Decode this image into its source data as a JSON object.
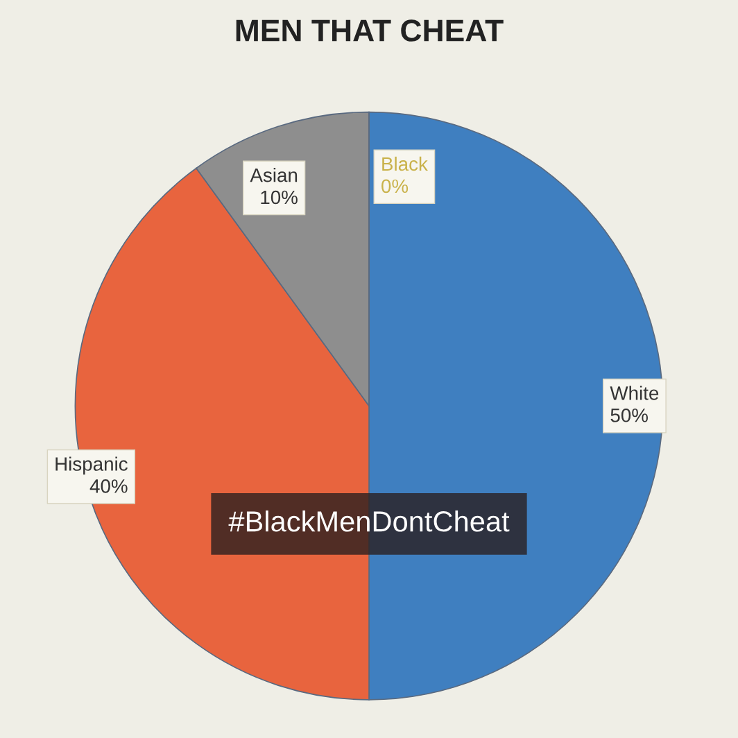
{
  "chart_data": {
    "type": "pie",
    "title": "MEN THAT CHEAT",
    "categories": [
      "White",
      "Hispanic",
      "Asian",
      "Black"
    ],
    "values": [
      50,
      40,
      10,
      0
    ],
    "value_labels": [
      "50%",
      "40%",
      "10%",
      "0%"
    ],
    "colors": [
      "#3f7fc0",
      "#e8643e",
      "#8e8e8e",
      "#e3cf5c"
    ],
    "annotations": [
      "#BlackMenDontCheat"
    ]
  }
}
